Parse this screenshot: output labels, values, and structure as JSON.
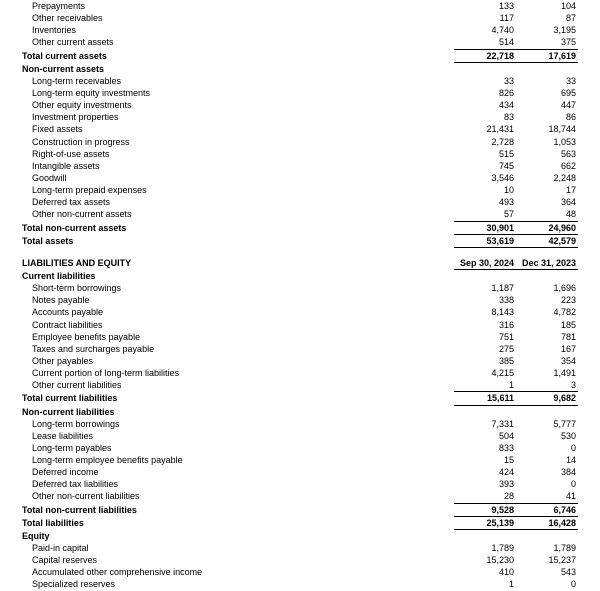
{
  "columns": {
    "c1": "Sep 30, 2024",
    "c2": "Dec 31, 2023"
  },
  "pre_current": [
    {
      "l": "Prepayments",
      "a": "133",
      "b": "104"
    },
    {
      "l": "Other receivables",
      "a": "117",
      "b": "87"
    },
    {
      "l": "Inventories",
      "a": "4,740",
      "b": "3,195"
    },
    {
      "l": "Other current assets",
      "a": "514",
      "b": "375"
    }
  ],
  "total_current_assets": {
    "l": "Total current assets",
    "a": "22,718",
    "b": "17,619"
  },
  "nca_head": "Non-current assets",
  "nca": [
    {
      "l": "Long-term receivables",
      "a": "33",
      "b": "33"
    },
    {
      "l": "Long-term equity investments",
      "a": "826",
      "b": "695"
    },
    {
      "l": "Other equity investments",
      "a": "434",
      "b": "447"
    },
    {
      "l": "Investment properties",
      "a": "83",
      "b": "86"
    },
    {
      "l": "Fixed assets",
      "a": "21,431",
      "b": "18,744"
    },
    {
      "l": "Construction in progress",
      "a": "2,728",
      "b": "1,053"
    },
    {
      "l": "Right-of-use assets",
      "a": "515",
      "b": "563"
    },
    {
      "l": "Intangible assets",
      "a": "745",
      "b": "662"
    },
    {
      "l": "Goodwill",
      "a": "3,546",
      "b": "2,248"
    },
    {
      "l": "Long-term prepaid expenses",
      "a": "10",
      "b": "17"
    },
    {
      "l": "Deferred tax assets",
      "a": "493",
      "b": "364"
    },
    {
      "l": "Other non-current assets",
      "a": "57",
      "b": "48"
    }
  ],
  "total_nca": {
    "l": "Total non-current assets",
    "a": "30,901",
    "b": "24,960"
  },
  "total_assets": {
    "l": "Total assets",
    "a": "53,619",
    "b": "42,579"
  },
  "liab_eq_head": "LIABILITIES AND EQUITY",
  "cl_head": "Current liabilities",
  "cl": [
    {
      "l": "Short-term borrowings",
      "a": "1,187",
      "b": "1,696"
    },
    {
      "l": "Notes payable",
      "a": "338",
      "b": "223"
    },
    {
      "l": "Accounts payable",
      "a": "8,143",
      "b": "4,782"
    },
    {
      "l": "Contract liabilities",
      "a": "316",
      "b": "185"
    },
    {
      "l": "Employee benefits payable",
      "a": "751",
      "b": "781"
    },
    {
      "l": "Taxes and surcharges payable",
      "a": "275",
      "b": "167"
    },
    {
      "l": "Other payables",
      "a": "385",
      "b": "354"
    },
    {
      "l": "Current portion of long-term liabilities",
      "a": "4,215",
      "b": "1,491"
    },
    {
      "l": "Other current liabilities",
      "a": "1",
      "b": "3"
    }
  ],
  "total_cl": {
    "l": "Total current liabilities",
    "a": "15,611",
    "b": "9,682"
  },
  "ncl_head": "Non-current liabilities",
  "ncl": [
    {
      "l": "Long-term borrowings",
      "a": "7,331",
      "b": "5,777"
    },
    {
      "l": "Lease liabilities",
      "a": "504",
      "b": "530"
    },
    {
      "l": "Long-term payables",
      "a": "833",
      "b": "0"
    },
    {
      "l": "Long-term employee benefits payable",
      "a": "15",
      "b": "14"
    },
    {
      "l": "Deferred income",
      "a": "424",
      "b": "384"
    },
    {
      "l": "Deferred tax liabilities",
      "a": "393",
      "b": "0"
    },
    {
      "l": "Other non-current liabilities",
      "a": "28",
      "b": "41"
    }
  ],
  "total_ncl": {
    "l": "Total non-current liabilities",
    "a": "9,528",
    "b": "6,746"
  },
  "total_liab": {
    "l": "Total liabilities",
    "a": "25,139",
    "b": "16,428"
  },
  "eq_head": "Equity",
  "eq": [
    {
      "l": "Paid-in capital",
      "a": "1,789",
      "b": "1,789"
    },
    {
      "l": "Capital reserves",
      "a": "15,230",
      "b": "15,237"
    },
    {
      "l": "Accumulated other comprehensive income",
      "a": "410",
      "b": "543"
    },
    {
      "l": "Specialized reserves",
      "a": "1",
      "b": "0"
    }
  ]
}
